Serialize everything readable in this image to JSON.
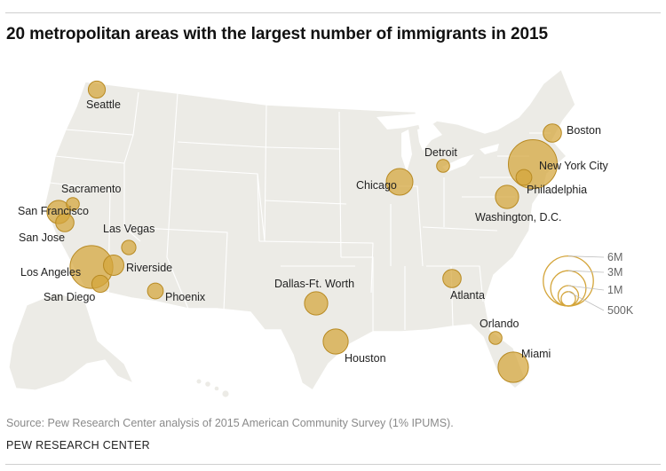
{
  "title": "20 metropolitan areas with the largest number of immigrants in 2015",
  "source": "Source: Pew Research Center analysis of 2015 American Community Survey (1% IPUMS).",
  "brand": "PEW RESEARCH CENTER",
  "colors": {
    "bubble_fill": "#d4a53a",
    "bubble_stroke": "#b88a22",
    "land": "#ecebe6",
    "border": "#ffffff"
  },
  "chart_data": {
    "type": "bubble-map",
    "title": "20 metropolitan areas with the largest number of immigrants in 2015",
    "metros": [
      {
        "name": "Seattle",
        "value_millions": 0.7
      },
      {
        "name": "Boston",
        "value_millions": 0.8
      },
      {
        "name": "Detroit",
        "value_millions": 0.4
      },
      {
        "name": "New York City",
        "value_millions": 5.7
      },
      {
        "name": "Chicago",
        "value_millions": 1.7
      },
      {
        "name": "Philadelphia",
        "value_millions": 0.6
      },
      {
        "name": "Sacramento",
        "value_millions": 0.4
      },
      {
        "name": "San Francisco",
        "value_millions": 1.3
      },
      {
        "name": "Washington, D.C.",
        "value_millions": 1.3
      },
      {
        "name": "San Jose",
        "value_millions": 0.8
      },
      {
        "name": "Las Vegas",
        "value_millions": 0.5
      },
      {
        "name": "Los Angeles",
        "value_millions": 4.4
      },
      {
        "name": "Riverside",
        "value_millions": 1.0
      },
      {
        "name": "Dallas-Ft. Worth",
        "value_millions": 1.3
      },
      {
        "name": "Atlanta",
        "value_millions": 0.8
      },
      {
        "name": "San Diego",
        "value_millions": 0.7
      },
      {
        "name": "Phoenix",
        "value_millions": 0.6
      },
      {
        "name": "Orlando",
        "value_millions": 0.4
      },
      {
        "name": "Houston",
        "value_millions": 1.5
      },
      {
        "name": "Miami",
        "value_millions": 2.2
      }
    ],
    "legend": {
      "sizes_millions": [
        6,
        3,
        1,
        0.5
      ],
      "labels": [
        "6M",
        "3M",
        "1M",
        "500K"
      ]
    }
  }
}
